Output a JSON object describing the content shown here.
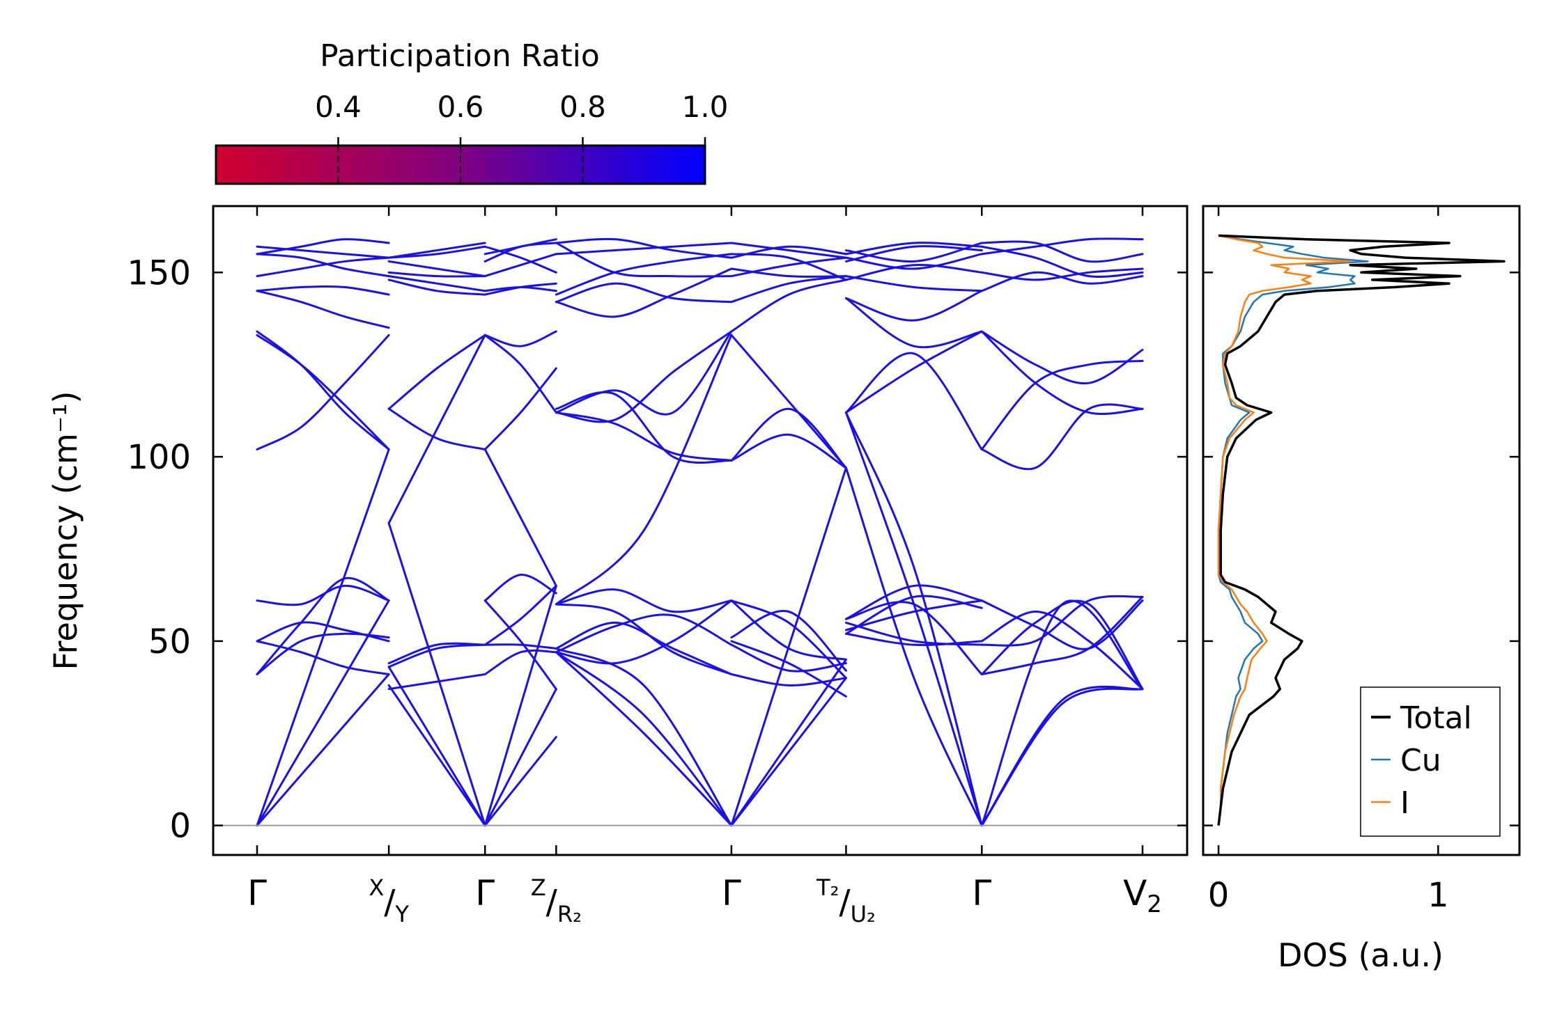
{
  "chart_data": [
    {
      "type": "line",
      "title": "",
      "xlabel": "",
      "ylabel": "Frequency (cm⁻¹)",
      "ylim": [
        -8,
        168
      ],
      "yticks": [
        0,
        50,
        100,
        150
      ],
      "ytick_labels": [
        "0",
        "50",
        "100",
        "150"
      ],
      "high_symmetry_points": [
        {
          "pos": 0.0,
          "label": "Γ"
        },
        {
          "pos": 1.0,
          "label": "X/Y"
        },
        {
          "pos": 1.73,
          "label": "Γ"
        },
        {
          "pos": 2.27,
          "label": "Z/R₂"
        },
        {
          "pos": 3.6,
          "label": "Γ"
        },
        {
          "pos": 4.47,
          "label": "T₂/U₂"
        },
        {
          "pos": 5.5,
          "label": "Γ"
        },
        {
          "pos": 6.72,
          "label": "V₂"
        }
      ],
      "discontinuities": [
        1.0,
        2.27,
        4.47
      ],
      "colorbar": {
        "label": "Participation Ratio",
        "range": [
          0.2,
          1.0
        ],
        "ticks": [
          0.4,
          0.6,
          0.8,
          1.0
        ],
        "tick_labels": [
          "0.4",
          "0.6",
          "0.8",
          "1.0"
        ],
        "low_color": "#d0002f",
        "mid_color": "#800080",
        "high_color": "#0000ff"
      },
      "band_color": "#1a10ee",
      "zero_line_color": "#999999",
      "segments": [
        {
          "from": 0,
          "to": 1,
          "bands": [
            [
              0,
              102
            ],
            [
              0,
              61
            ],
            [
              0,
              41
            ],
            [
              41,
              50,
              52,
              51
            ],
            [
              50,
              47,
              43,
              41
            ],
            [
              50,
              55,
              53,
              50
            ],
            [
              61,
              60,
              65,
              61
            ],
            [
              41,
              55,
              67,
              61
            ],
            [
              102,
              108,
              120,
              133
            ],
            [
              134,
              125,
              112,
              102
            ],
            [
              133,
              125,
              114,
              102
            ],
            [
              145,
              142,
              138,
              135
            ],
            [
              145,
              146,
              146,
              144
            ],
            [
              149,
              151,
              153,
              154
            ],
            [
              155,
              154,
              151,
              149
            ],
            [
              155,
              157,
              159,
              158
            ],
            [
              157,
              156,
              155,
              154
            ]
          ]
        },
        {
          "from": 1,
          "to": 1.73,
          "bands": [
            [
              82,
              0
            ],
            [
              38,
              0
            ],
            [
              43,
              0
            ],
            [
              82,
              133
            ],
            [
              44,
              49,
              49
            ],
            [
              43,
              48,
              49
            ],
            [
              37,
              39,
              41
            ],
            [
              113,
              105,
              102
            ],
            [
              113,
              124,
              133
            ],
            [
              150,
              149,
              149
            ],
            [
              149,
              147,
              145
            ],
            [
              148,
              145,
              144
            ],
            [
              153,
              151,
              149
            ],
            [
              154,
              155,
              157
            ],
            [
              154,
              156,
              158
            ]
          ]
        },
        {
          "from": 1.73,
          "to": 2.27,
          "bands": [
            [
              0,
              65
            ],
            [
              0,
              37
            ],
            [
              0,
              24
            ],
            [
              102,
              65
            ],
            [
              41,
              47,
              47
            ],
            [
              49,
              49,
              48
            ],
            [
              49,
              56,
              65
            ],
            [
              61,
              50,
              37
            ],
            [
              61,
              68,
              63
            ],
            [
              102,
              112,
              124
            ],
            [
              133,
              125,
              112
            ],
            [
              133,
              130,
              134
            ],
            [
              144,
              146,
              147
            ],
            [
              145,
              146,
              145
            ],
            [
              149,
              152,
              155
            ],
            [
              155,
              157,
              159
            ],
            [
              157,
              154,
              150
            ],
            [
              153,
              157,
              158
            ]
          ]
        },
        {
          "from": 2.27,
          "to": 3.6,
          "bands": [
            [
              47,
              25,
              0
            ],
            [
              47,
              30,
              0
            ],
            [
              48,
              38,
              0
            ],
            [
              60,
              80,
              133
            ],
            [
              47,
              44,
              50,
              61
            ],
            [
              47,
              54,
              57,
              49
            ],
            [
              48,
              55,
              48,
              41
            ],
            [
              60,
              58,
              47,
              41
            ],
            [
              60,
              64,
              58,
              61
            ],
            [
              113,
              117,
              100,
              99
            ],
            [
              112,
              109,
              101,
              99
            ],
            [
              112,
              118,
              112,
              134
            ],
            [
              112,
              110,
              123,
              134
            ],
            [
              142,
              147,
              143,
              142
            ],
            [
              142,
              138,
              144,
              151
            ],
            [
              144,
              150,
              153,
              155
            ],
            [
              155,
              156,
              157,
              158
            ],
            [
              158,
              159,
              156,
              154
            ],
            [
              158,
              150,
              149,
              149
            ]
          ]
        },
        {
          "from": 3.6,
          "to": 4.47,
          "bands": [
            [
              0,
              40
            ],
            [
              0,
              45
            ],
            [
              0,
              97
            ],
            [
              133,
              97
            ],
            [
              41,
              38,
              40
            ],
            [
              50,
              44,
              35
            ],
            [
              51,
              58,
              42
            ],
            [
              61,
              48,
              45
            ],
            [
              61,
              55,
              40
            ],
            [
              49,
              42,
              44
            ],
            [
              99,
              113,
              97
            ],
            [
              99,
              106,
              97
            ],
            [
              134,
              144,
              148
            ],
            [
              142,
              147,
              149
            ],
            [
              151,
              149,
              149
            ],
            [
              155,
              154,
              148
            ],
            [
              158,
              156,
              154
            ],
            [
              154,
              157,
              155
            ],
            [
              149,
              152,
              154
            ]
          ]
        },
        {
          "from": 4.47,
          "to": 5.5,
          "bands": [
            [
              97,
              40,
              0
            ],
            [
              112,
              60,
              0
            ],
            [
              112,
              70,
              0
            ],
            [
              56,
              60,
              41
            ],
            [
              55,
              50,
              49
            ],
            [
              53,
              58,
              61
            ],
            [
              52,
              62,
              59
            ],
            [
              52,
              49,
              50
            ],
            [
              56,
              65,
              61
            ],
            [
              112,
              124,
              134
            ],
            [
              112,
              128,
              102
            ],
            [
              143,
              130,
              134
            ],
            [
              143,
              137,
              145
            ],
            [
              149,
              146,
              145
            ],
            [
              148,
              152,
              150
            ],
            [
              154,
              151,
              155
            ],
            [
              155,
              158,
              157
            ],
            [
              153,
              157,
              156
            ],
            [
              156,
              153,
              158
            ]
          ]
        },
        {
          "from": 5.5,
          "to": 6.72,
          "bands": [
            [
              0,
              33,
              37
            ],
            [
              0,
              34,
              37
            ],
            [
              0,
              60,
              37
            ],
            [
              41,
              44,
              48,
              62
            ],
            [
              49,
              50,
              61,
              62
            ],
            [
              50,
              58,
              50,
              37
            ],
            [
              61,
              54,
              48,
              61
            ],
            [
              41,
              55,
              60,
              37
            ],
            [
              102,
              97,
              113,
              113
            ],
            [
              102,
              120,
              125,
              126
            ],
            [
              134,
              120,
              112,
              113
            ],
            [
              134,
              125,
              120,
              129
            ],
            [
              145,
              150,
              147,
              149
            ],
            [
              150,
              148,
              150,
              151
            ],
            [
              158,
              158,
              153,
              155
            ],
            [
              155,
              157,
              159,
              159
            ],
            [
              157,
              154,
              149,
              150
            ]
          ]
        }
      ]
    },
    {
      "type": "line",
      "title": "",
      "xlabel": "DOS (a.u.)",
      "ylabel": "",
      "xlim": [
        -0.07,
        1.37
      ],
      "ylim": [
        -8,
        168
      ],
      "xticks": [
        0,
        1
      ],
      "xtick_labels": [
        "0",
        "1"
      ],
      "legend_position": "bottom-right",
      "y": [
        0,
        5,
        10,
        15,
        20,
        25,
        30,
        35,
        37,
        40,
        45,
        48,
        50,
        52,
        55,
        58,
        60,
        62,
        64,
        66,
        68,
        70,
        80,
        90,
        100,
        105,
        110,
        112,
        114,
        116,
        120,
        125,
        128,
        130,
        134,
        138,
        140,
        142,
        144,
        145,
        146,
        147,
        148,
        149,
        150,
        151,
        152,
        153,
        154,
        155,
        156,
        157,
        158,
        159,
        160
      ],
      "series": [
        {
          "name": "Total",
          "color": "#000000",
          "values": [
            0.0,
            0.01,
            0.02,
            0.04,
            0.06,
            0.1,
            0.14,
            0.25,
            0.28,
            0.26,
            0.3,
            0.36,
            0.38,
            0.32,
            0.24,
            0.26,
            0.22,
            0.18,
            0.12,
            0.03,
            0.01,
            0.01,
            0.01,
            0.02,
            0.04,
            0.08,
            0.17,
            0.24,
            0.13,
            0.08,
            0.06,
            0.03,
            0.04,
            0.1,
            0.18,
            0.22,
            0.24,
            0.26,
            0.3,
            0.45,
            0.8,
            1.05,
            0.7,
            1.1,
            0.65,
            0.9,
            0.6,
            1.3,
            0.85,
            0.65,
            0.6,
            0.75,
            1.05,
            0.4,
            0.0
          ]
        },
        {
          "name": "Cu",
          "color": "#1f77b4",
          "values": [
            0.0,
            0.01,
            0.01,
            0.02,
            0.03,
            0.04,
            0.06,
            0.08,
            0.1,
            0.09,
            0.12,
            0.16,
            0.2,
            0.18,
            0.12,
            0.1,
            0.08,
            0.06,
            0.05,
            0.01,
            0.0,
            0.0,
            0.0,
            0.01,
            0.02,
            0.04,
            0.1,
            0.14,
            0.06,
            0.05,
            0.03,
            0.02,
            0.02,
            0.06,
            0.1,
            0.12,
            0.14,
            0.16,
            0.2,
            0.3,
            0.5,
            0.62,
            0.6,
            0.62,
            0.45,
            0.5,
            0.4,
            0.68,
            0.48,
            0.38,
            0.3,
            0.34,
            0.22,
            0.1,
            0.0
          ]
        },
        {
          "name": "I",
          "color": "#ff7f0e",
          "values": [
            0.0,
            0.01,
            0.01,
            0.02,
            0.03,
            0.05,
            0.07,
            0.1,
            0.12,
            0.13,
            0.15,
            0.19,
            0.22,
            0.2,
            0.16,
            0.13,
            0.1,
            0.08,
            0.06,
            0.02,
            0.0,
            0.0,
            0.0,
            0.01,
            0.02,
            0.05,
            0.12,
            0.16,
            0.08,
            0.05,
            0.04,
            0.02,
            0.03,
            0.06,
            0.09,
            0.1,
            0.11,
            0.12,
            0.14,
            0.2,
            0.32,
            0.42,
            0.38,
            0.42,
            0.3,
            0.32,
            0.24,
            0.6,
            0.3,
            0.22,
            0.16,
            0.2,
            0.18,
            0.08,
            0.0
          ]
        }
      ]
    }
  ]
}
